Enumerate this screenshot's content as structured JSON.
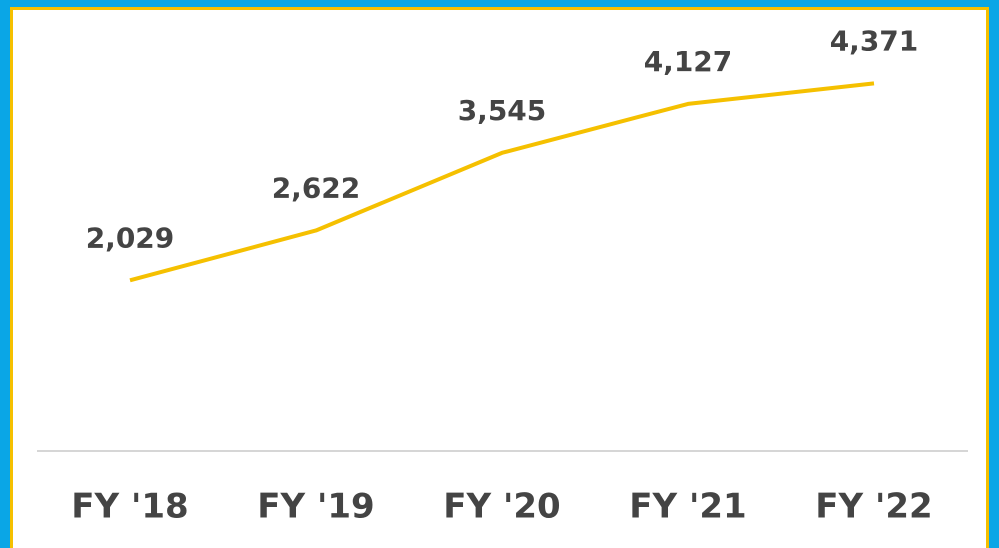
{
  "chart_data": {
    "type": "line",
    "categories": [
      "FY '18",
      "FY '19",
      "FY '20",
      "FY '21",
      "FY '22"
    ],
    "values": [
      2029,
      2622,
      3545,
      4127,
      4371
    ],
    "value_labels": [
      "2,029",
      "2,622",
      "3,545",
      "4,127",
      "4,371"
    ],
    "color": "#f5c000",
    "ylim": [
      0,
      5000
    ]
  }
}
